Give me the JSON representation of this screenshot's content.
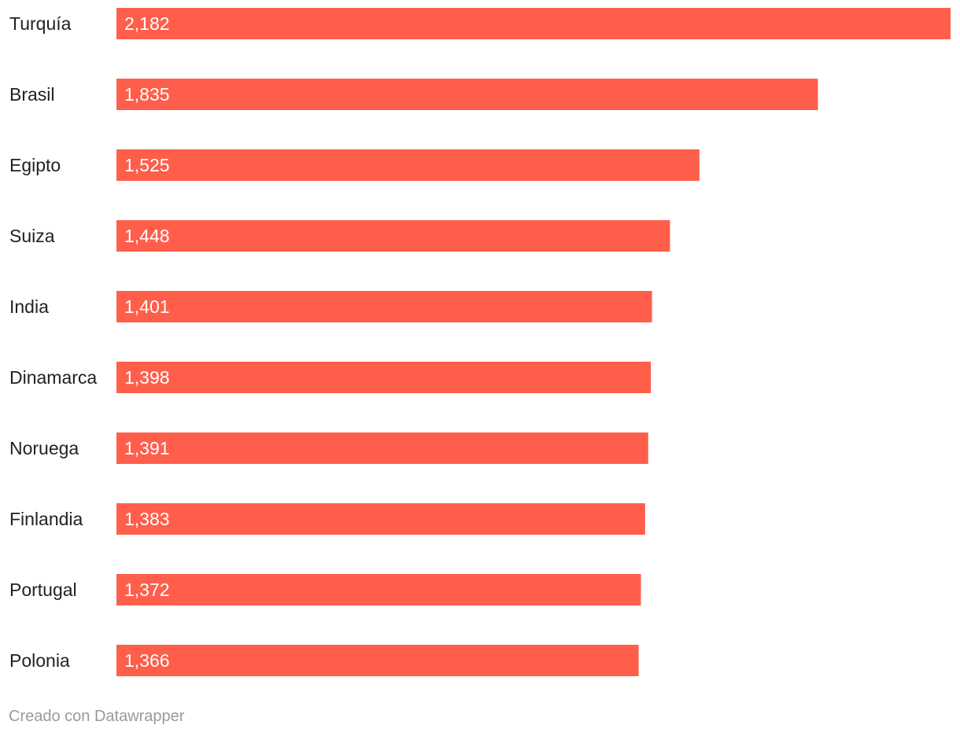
{
  "chart_data": {
    "type": "bar",
    "orientation": "horizontal",
    "categories": [
      "Turquía",
      "Brasil",
      "Egipto",
      "Suiza",
      "India",
      "Dinamarca",
      "Noruega",
      "Finlandia",
      "Portugal",
      "Polonia"
    ],
    "values": [
      2182,
      1835,
      1525,
      1448,
      1401,
      1398,
      1391,
      1383,
      1372,
      1366
    ],
    "value_labels": [
      "2,182",
      "1,835",
      "1,525",
      "1,448",
      "1,401",
      "1,398",
      "1,391",
      "1,383",
      "1,372",
      "1,366"
    ],
    "bar_color": "#ff5e4b",
    "xlim": [
      0,
      2182
    ],
    "grid": false,
    "legend": "none"
  },
  "footer": {
    "credit": "Creado con Datawrapper"
  }
}
